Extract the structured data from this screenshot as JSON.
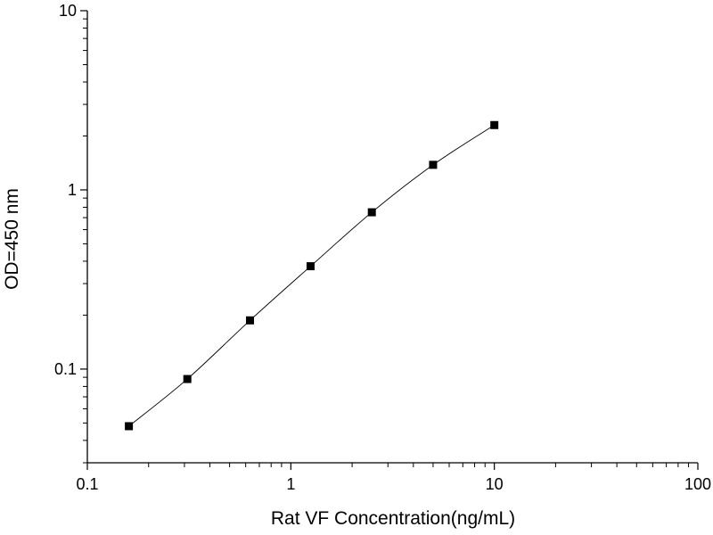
{
  "chart_data": {
    "type": "line",
    "title": "",
    "xlabel": "Rat VF Concentration(ng/mL)",
    "ylabel": "OD=450 nm",
    "xscale": "log",
    "yscale": "log",
    "xlim": [
      0.1,
      100
    ],
    "ylim": [
      0.03,
      10
    ],
    "xticks": [
      0.1,
      1,
      10,
      100
    ],
    "xtick_labels": [
      "0.1",
      "1",
      "10",
      "100"
    ],
    "yticks": [
      0.1,
      1,
      10
    ],
    "ytick_labels": [
      "0.1",
      "1",
      "10"
    ],
    "grid": false,
    "legend": "none",
    "marker": "square",
    "series": [
      {
        "x": [
          0.16,
          0.31,
          0.63,
          1.25,
          2.5,
          5,
          10
        ],
        "y": [
          0.048,
          0.088,
          0.187,
          0.375,
          0.75,
          1.38,
          2.3
        ]
      }
    ],
    "colors": {
      "line": "#000000",
      "marker": "#000000",
      "axis": "#000000"
    }
  }
}
